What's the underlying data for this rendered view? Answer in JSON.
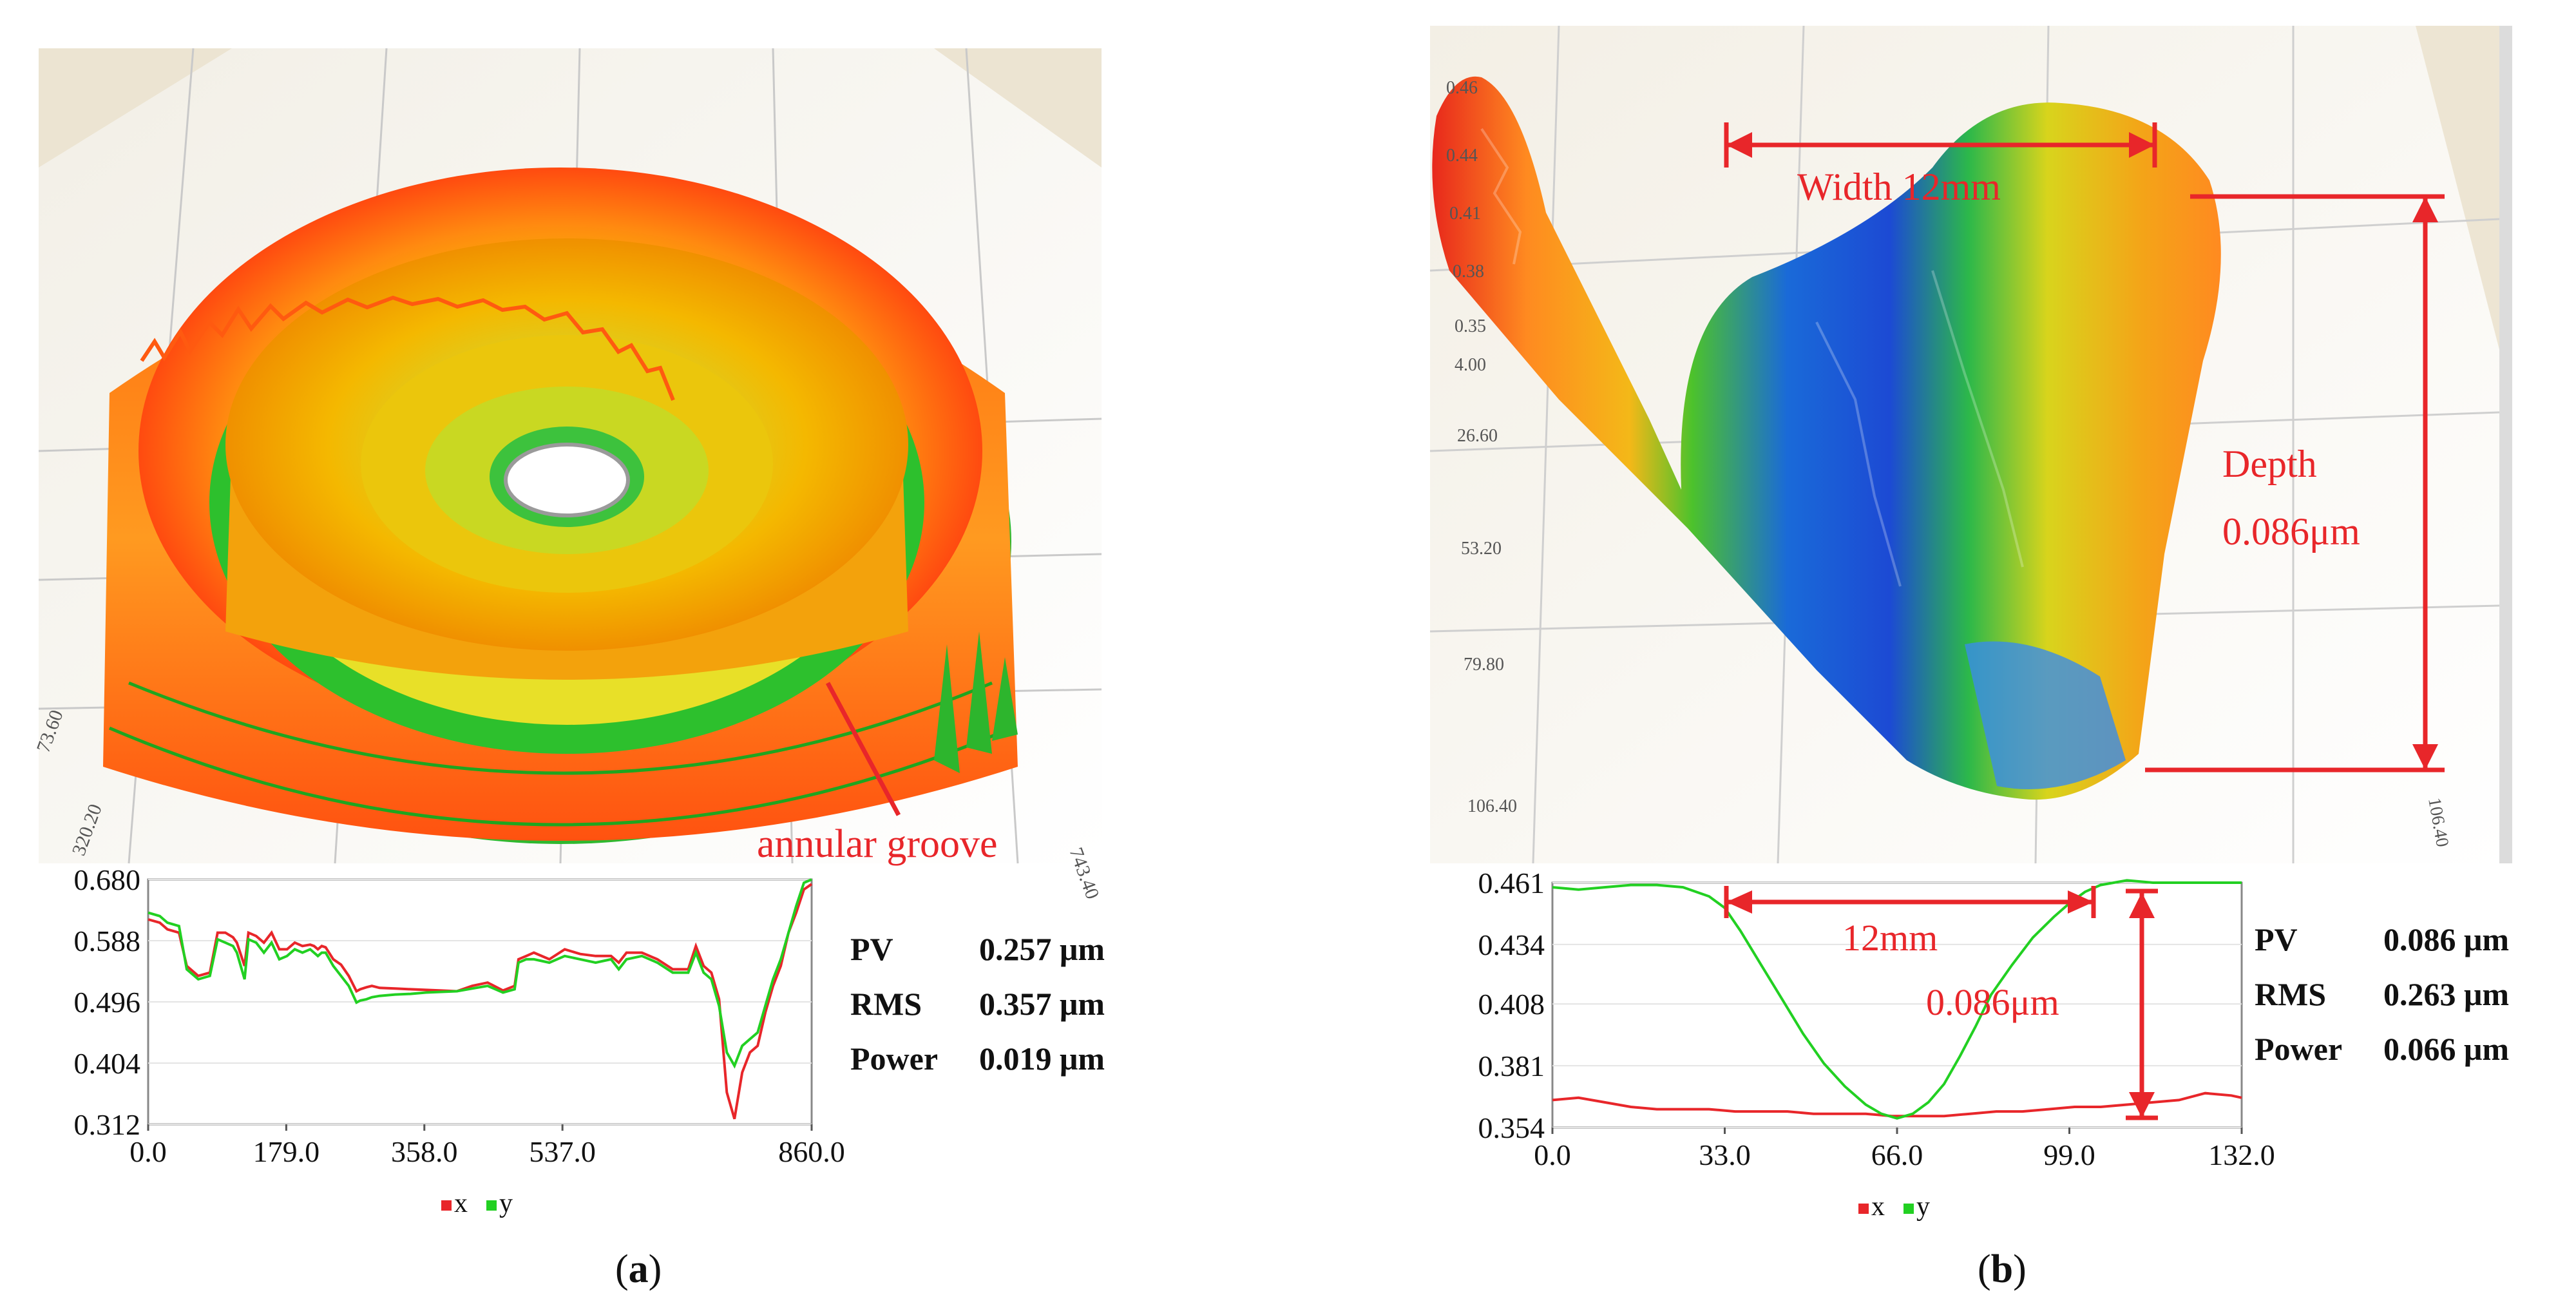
{
  "figure": {
    "panel_a": {
      "caption_letter": "a",
      "annotation": "annular groove",
      "stats": [
        {
          "label": "PV",
          "value": "0.257 μm"
        },
        {
          "label": "RMS",
          "value": "0.357 μm"
        },
        {
          "label": "Power",
          "value": "0.019 μm"
        }
      ],
      "surface_ticks": [
        "73.60",
        "320.20",
        "743.40"
      ]
    },
    "panel_b": {
      "caption_letter": "b",
      "width_label": "Width 12mm",
      "depth_label_line1": "Depth",
      "depth_label_line2": "0.086μm",
      "profile_width_label": "12mm",
      "profile_depth_label": "0.086μm",
      "stats": [
        {
          "label": "PV",
          "value": "0.086 μm"
        },
        {
          "label": "RMS",
          "value": "0.263 μm"
        },
        {
          "label": "Power",
          "value": "0.066 μm"
        }
      ],
      "surface_ticks": [
        "0.46",
        "0.44",
        "0.41",
        "0.38",
        "0.35",
        "4.00",
        "26.60",
        "53.20",
        "79.80",
        "106.40",
        "106.40"
      ]
    }
  },
  "chart_data": [
    {
      "type": "line",
      "title": "",
      "xlabel": "",
      "ylabel": "",
      "xlim": [
        0.0,
        860.0
      ],
      "ylim": [
        0.312,
        0.68
      ],
      "x_ticks": [
        "0.0",
        "179.0",
        "358.0",
        "537.0",
        "860.0"
      ],
      "y_ticks": [
        "0.680",
        "0.588",
        "0.496",
        "0.404",
        "0.312"
      ],
      "legend": [
        "x",
        "y"
      ],
      "series": [
        {
          "name": "x",
          "color": "#e8262a",
          "x": [
            0,
            15,
            25,
            40,
            50,
            65,
            80,
            90,
            100,
            110,
            115,
            125,
            130,
            140,
            150,
            160,
            170,
            180,
            190,
            200,
            210,
            215,
            220,
            225,
            230,
            240,
            250,
            260,
            270,
            275,
            283,
            290,
            300,
            320,
            340,
            360,
            380,
            400,
            420,
            440,
            460,
            475,
            480,
            490,
            500,
            520,
            540,
            560,
            580,
            600,
            610,
            620,
            640,
            660,
            680,
            700,
            710,
            720,
            730,
            740,
            750,
            760,
            770,
            780,
            790,
            800,
            810,
            820,
            830,
            840,
            850,
            860
          ],
          "y": [
            0.62,
            0.615,
            0.605,
            0.6,
            0.55,
            0.535,
            0.54,
            0.6,
            0.6,
            0.593,
            0.585,
            0.55,
            0.6,
            0.595,
            0.585,
            0.6,
            0.575,
            0.575,
            0.585,
            0.58,
            0.582,
            0.58,
            0.575,
            0.58,
            0.578,
            0.56,
            0.552,
            0.535,
            0.512,
            0.515,
            0.518,
            0.52,
            0.517,
            0.516,
            0.515,
            0.514,
            0.513,
            0.512,
            0.52,
            0.525,
            0.513,
            0.52,
            0.56,
            0.565,
            0.57,
            0.56,
            0.575,
            0.568,
            0.565,
            0.565,
            0.555,
            0.57,
            0.57,
            0.56,
            0.545,
            0.545,
            0.58,
            0.55,
            0.54,
            0.5,
            0.36,
            0.32,
            0.39,
            0.42,
            0.43,
            0.48,
            0.52,
            0.55,
            0.6,
            0.63,
            0.665,
            0.673
          ]
        },
        {
          "name": "y",
          "color": "#22d022",
          "x": [
            0,
            15,
            25,
            40,
            50,
            65,
            80,
            90,
            100,
            110,
            115,
            125,
            130,
            140,
            150,
            160,
            170,
            180,
            190,
            200,
            210,
            215,
            220,
            225,
            230,
            240,
            250,
            260,
            270,
            275,
            283,
            290,
            300,
            320,
            340,
            360,
            380,
            400,
            420,
            440,
            460,
            475,
            480,
            490,
            500,
            520,
            540,
            560,
            580,
            600,
            610,
            620,
            640,
            660,
            680,
            700,
            710,
            720,
            730,
            740,
            750,
            760,
            770,
            780,
            790,
            800,
            810,
            820,
            830,
            840,
            850,
            860
          ],
          "y": [
            0.63,
            0.625,
            0.615,
            0.61,
            0.545,
            0.53,
            0.535,
            0.59,
            0.585,
            0.58,
            0.57,
            0.53,
            0.59,
            0.585,
            0.57,
            0.585,
            0.56,
            0.565,
            0.575,
            0.57,
            0.575,
            0.57,
            0.565,
            0.57,
            0.57,
            0.55,
            0.535,
            0.52,
            0.495,
            0.498,
            0.5,
            0.503,
            0.505,
            0.507,
            0.508,
            0.51,
            0.511,
            0.512,
            0.516,
            0.52,
            0.51,
            0.515,
            0.555,
            0.56,
            0.56,
            0.555,
            0.565,
            0.56,
            0.555,
            0.56,
            0.545,
            0.56,
            0.565,
            0.555,
            0.54,
            0.54,
            0.57,
            0.54,
            0.53,
            0.49,
            0.42,
            0.4,
            0.43,
            0.44,
            0.45,
            0.49,
            0.53,
            0.56,
            0.6,
            0.64,
            0.675,
            0.68
          ]
        }
      ]
    },
    {
      "type": "line",
      "title": "",
      "xlabel": "",
      "ylabel": "",
      "xlim": [
        0.0,
        132.0
      ],
      "ylim": [
        0.354,
        0.461
      ],
      "x_ticks": [
        "0.0",
        "33.0",
        "66.0",
        "99.0",
        "132.0"
      ],
      "y_ticks": [
        "0.461",
        "0.434",
        "0.408",
        "0.381",
        "0.354"
      ],
      "legend": [
        "x",
        "y"
      ],
      "series": [
        {
          "name": "x",
          "color": "#e8262a",
          "x": [
            0,
            5,
            10,
            15,
            20,
            25,
            30,
            35,
            40,
            45,
            50,
            55,
            60,
            65,
            70,
            75,
            80,
            85,
            90,
            95,
            100,
            105,
            110,
            115,
            120,
            125,
            130,
            132
          ],
          "y": [
            0.366,
            0.367,
            0.365,
            0.363,
            0.362,
            0.362,
            0.362,
            0.361,
            0.361,
            0.361,
            0.36,
            0.36,
            0.36,
            0.359,
            0.359,
            0.359,
            0.36,
            0.361,
            0.361,
            0.362,
            0.363,
            0.363,
            0.364,
            0.365,
            0.366,
            0.369,
            0.368,
            0.367
          ]
        },
        {
          "name": "y",
          "color": "#22d022",
          "x": [
            0,
            5,
            10,
            15,
            20,
            25,
            30,
            33,
            36,
            40,
            44,
            48,
            52,
            56,
            60,
            63,
            66,
            69,
            72,
            75,
            78,
            81,
            84,
            88,
            92,
            96,
            99,
            102,
            105,
            110,
            115,
            120,
            125,
            132
          ],
          "y": [
            0.459,
            0.458,
            0.459,
            0.46,
            0.46,
            0.459,
            0.455,
            0.45,
            0.44,
            0.425,
            0.41,
            0.395,
            0.382,
            0.372,
            0.364,
            0.36,
            0.358,
            0.36,
            0.365,
            0.373,
            0.385,
            0.398,
            0.412,
            0.425,
            0.437,
            0.446,
            0.452,
            0.457,
            0.46,
            0.462,
            0.461,
            0.461,
            0.461,
            0.461
          ]
        }
      ]
    }
  ]
}
